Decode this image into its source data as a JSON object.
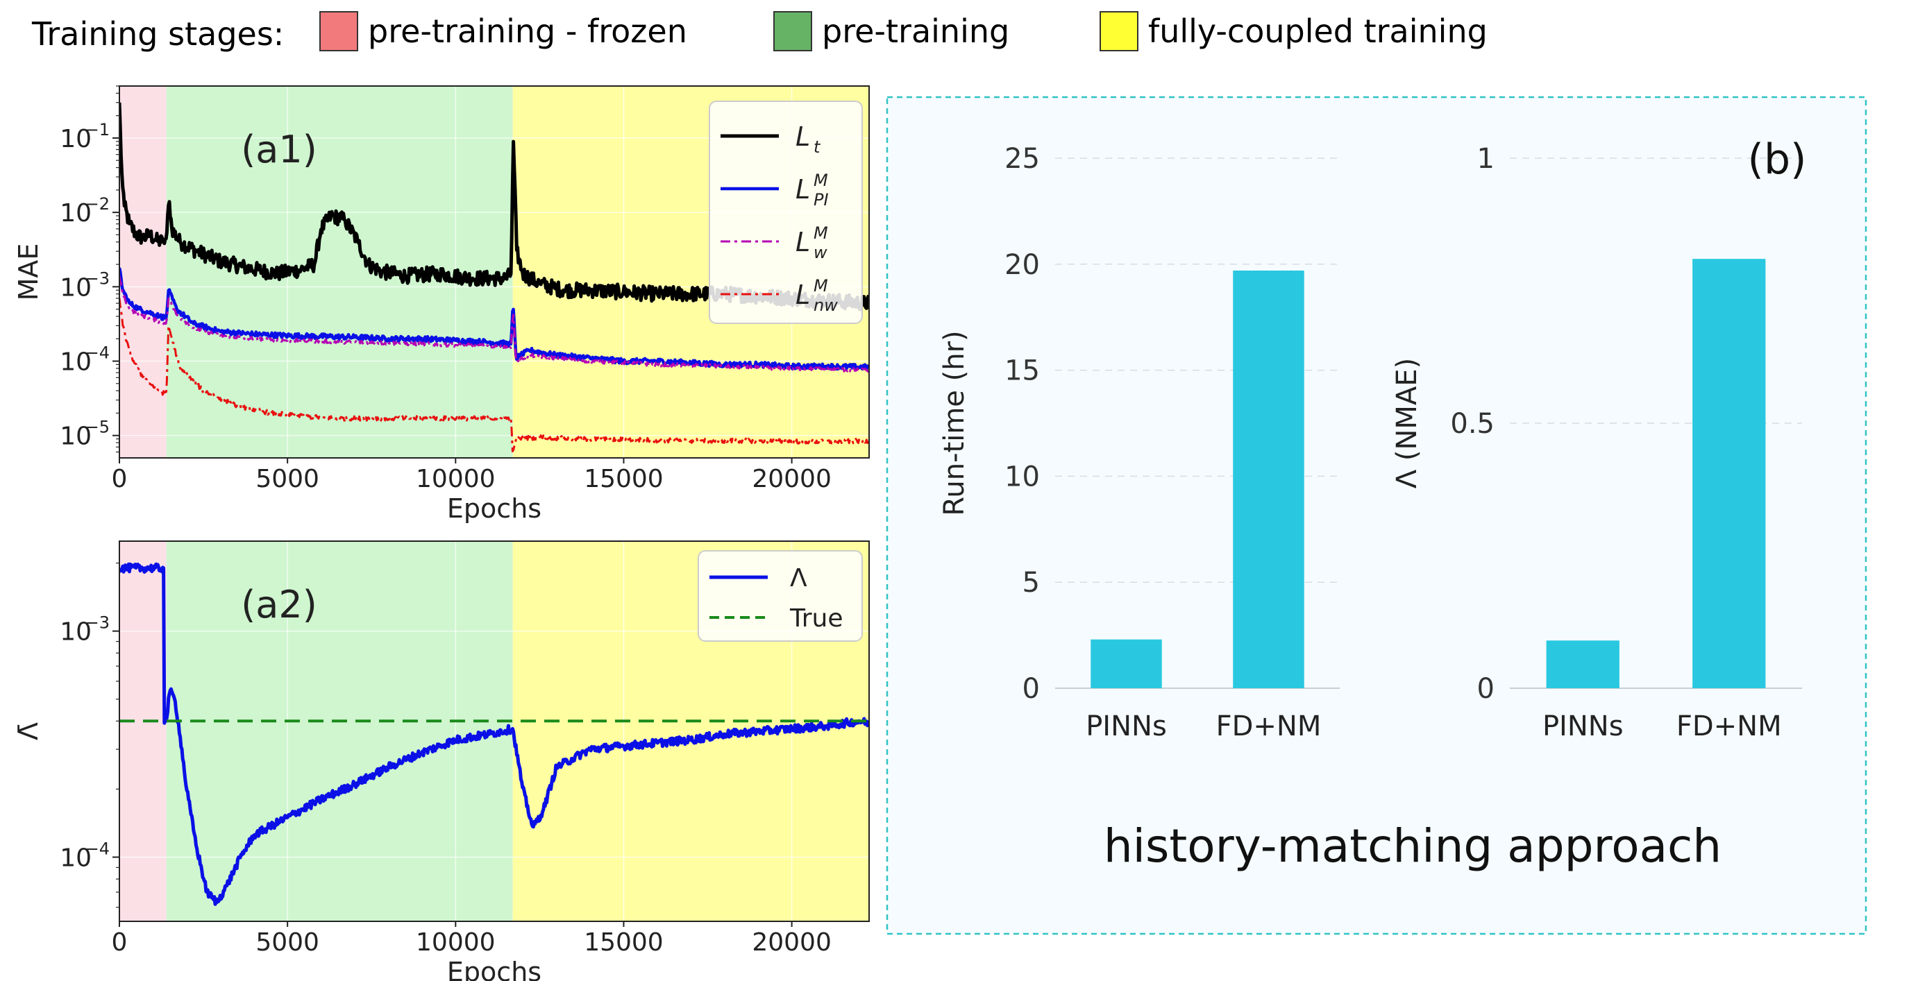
{
  "stage_legend": {
    "title": "Training stages:",
    "items": [
      {
        "label": "pre-training - frozen",
        "color": "#f27a7c"
      },
      {
        "label": "pre-training",
        "color": "#66b366"
      },
      {
        "label": "fully-coupled training",
        "color": "#ffff33"
      }
    ]
  },
  "colors": {
    "frozen_bg": "#fbe0e6",
    "pre_bg": "#cff6cf",
    "coupled_bg": "#ffffa2",
    "bar": "#29c8e0",
    "panel_border": "#30c4c4",
    "panel_bg": "#f5fbfe"
  },
  "chart_data": [
    {
      "id": "a1",
      "type": "line",
      "panel_label": "(a1)",
      "xlabel": "Epochs",
      "ylabel": "MAE",
      "yscale": "log",
      "xlim": [
        0,
        22300
      ],
      "ylim": [
        5e-06,
        0.5
      ],
      "xticks": [
        0,
        5000,
        10000,
        15000,
        20000
      ],
      "xtick_labels": [
        "0",
        "5000",
        "10000",
        "15000",
        "20000"
      ],
      "yticks": [
        1e-05,
        0.0001,
        0.001,
        0.01,
        0.1
      ],
      "ytick_labels": [
        [
          "10",
          "−5"
        ],
        [
          "10",
          "−4"
        ],
        [
          "10",
          "−3"
        ],
        [
          "10",
          "−2"
        ],
        [
          "10",
          "−1"
        ]
      ],
      "stages": [
        [
          0,
          1400,
          "frozen"
        ],
        [
          1400,
          11700,
          "pre"
        ],
        [
          11700,
          22300,
          "coupled"
        ]
      ],
      "legend_position": "top-right",
      "series": [
        {
          "name": "Lt",
          "name_main": "L",
          "name_sub": "t",
          "name_sup": "",
          "color": "#000000",
          "dash": "",
          "width": 5,
          "x": [
            0,
            60,
            150,
            300,
            500,
            700,
            900,
            1100,
            1300,
            1400,
            1480,
            1560,
            1800,
            2300,
            3000,
            3800,
            4700,
            5400,
            5800,
            6000,
            6300,
            6700,
            7100,
            7400,
            7800,
            8500,
            9500,
            10500,
            11500,
            11650,
            11720,
            11820,
            12000,
            12500,
            13200,
            14000,
            15000,
            16000,
            17000,
            18000,
            19000,
            20000,
            21000,
            22300
          ],
          "y": [
            0.3,
            0.04,
            0.012,
            0.007,
            0.005,
            0.0045,
            0.005,
            0.0042,
            0.004,
            0.0045,
            0.015,
            0.006,
            0.004,
            0.003,
            0.0022,
            0.0018,
            0.0015,
            0.0017,
            0.002,
            0.006,
            0.009,
            0.008,
            0.004,
            0.002,
            0.0016,
            0.0014,
            0.0015,
            0.0013,
            0.0013,
            0.0015,
            0.09,
            0.003,
            0.0015,
            0.0011,
            0.0009,
            0.0009,
            0.00085,
            0.0008,
            0.0008,
            0.0008,
            0.00075,
            0.0007,
            0.00065,
            0.0006
          ],
          "noise": 0.2
        },
        {
          "name": "L^M_PI",
          "name_main": "L",
          "name_sub": "PI",
          "name_sup": "M",
          "color": "#0a10e6",
          "dash": "",
          "width": 4.5,
          "x": [
            0,
            100,
            300,
            600,
            900,
            1200,
            1400,
            1460,
            1700,
            2200,
            3000,
            4000,
            5000,
            6000,
            7000,
            8000,
            9000,
            10000,
            11000,
            11650,
            11710,
            11800,
            12200,
            13000,
            14000,
            15000,
            16000,
            17000,
            18000,
            19000,
            20000,
            21000,
            22300
          ],
          "y": [
            0.0018,
            0.0009,
            0.0006,
            0.0005,
            0.00045,
            0.0004,
            0.00038,
            0.0009,
            0.0005,
            0.00032,
            0.00025,
            0.00023,
            0.00022,
            0.000215,
            0.00021,
            0.0002,
            0.0002,
            0.00019,
            0.00018,
            0.00017,
            0.0006,
            0.00011,
            0.00014,
            0.00012,
            0.00011,
            0.0001,
            0.0001,
            9.5e-05,
            9e-05,
            9e-05,
            8.5e-05,
            8.5e-05,
            8.3e-05
          ],
          "noise": 0.07
        },
        {
          "name": "L^M_w",
          "name_main": "L",
          "name_sub": "w",
          "name_sup": "M",
          "color": "#b400b4",
          "dash": "14 6 4 6",
          "width": 3,
          "x": [
            0,
            100,
            300,
            600,
            900,
            1200,
            1400,
            1460,
            1700,
            2200,
            3000,
            4000,
            5000,
            6000,
            7000,
            8000,
            9000,
            10000,
            11000,
            11650,
            11710,
            11800,
            12200,
            13000,
            14000,
            15000,
            16000,
            17000,
            18000,
            19000,
            20000,
            21000,
            22300
          ],
          "y": [
            0.0014,
            0.0008,
            0.0005,
            0.00042,
            0.00038,
            0.00034,
            0.00032,
            0.0007,
            0.00042,
            0.00028,
            0.00022,
            0.0002,
            0.00019,
            0.000185,
            0.00018,
            0.000175,
            0.00017,
            0.000165,
            0.00016,
            0.00015,
            0.0005,
            0.0001,
            0.00012,
            0.00011,
            0.0001,
            9.5e-05,
            9e-05,
            8.8e-05,
            8.5e-05,
            8.2e-05,
            8e-05,
            7.8e-05,
            7.5e-05
          ],
          "noise": 0.05
        },
        {
          "name": "L^M_nw",
          "name_main": "L",
          "name_sub": "nw",
          "name_sup": "M",
          "color": "#e81010",
          "dash": "14 6 4 6",
          "width": 3,
          "x": [
            0,
            100,
            300,
            600,
            900,
            1200,
            1400,
            1460,
            1800,
            2500,
            3500,
            4500,
            5500,
            6500,
            7500,
            8500,
            9500,
            10500,
            11650,
            11700,
            11800,
            12500,
            13500,
            15000,
            17000,
            19000,
            21000,
            22300
          ],
          "y": [
            0.0007,
            0.0003,
            0.00013,
            7e-05,
            5e-05,
            4e-05,
            3.5e-05,
            0.0003,
            8e-05,
            4e-05,
            2.5e-05,
            2e-05,
            1.8e-05,
            1.7e-05,
            1.7e-05,
            1.7e-05,
            1.7e-05,
            1.7e-05,
            1.7e-05,
            5.5e-06,
            9e-06,
            9.5e-06,
            9e-06,
            8.8e-06,
            8.5e-06,
            8.5e-06,
            8.2e-06,
            8.5e-06
          ],
          "noise": 0.06
        }
      ]
    },
    {
      "id": "a2",
      "type": "line",
      "panel_label": "(a2)",
      "xlabel": "Epochs",
      "ylabel": "Λ̄",
      "yscale": "log",
      "xlim": [
        0,
        22300
      ],
      "ylim": [
        5.2e-05,
        0.0025
      ],
      "xticks": [
        0,
        5000,
        10000,
        15000,
        20000
      ],
      "xtick_labels": [
        "0",
        "5000",
        "10000",
        "15000",
        "20000"
      ],
      "yticks": [
        0.0001,
        0.001
      ],
      "ytick_labels": [
        [
          "10",
          "−4"
        ],
        [
          "10",
          "−3"
        ]
      ],
      "stages": [
        [
          0,
          1400,
          "frozen"
        ],
        [
          1400,
          11700,
          "pre"
        ],
        [
          11700,
          22300,
          "coupled"
        ]
      ],
      "legend_position": "top-right",
      "series": [
        {
          "name": "Λ",
          "name_main": "Λ",
          "name_sub": "",
          "name_sup": "",
          "color": "#0a10e6",
          "dash": "",
          "width": 5,
          "x": [
            0,
            1320,
            1321,
            1400,
            1500,
            1650,
            1800,
            2000,
            2300,
            2600,
            2900,
            3200,
            3600,
            4000,
            5000,
            6000,
            7000,
            8000,
            9000,
            10000,
            11000,
            11700,
            12000,
            12300,
            12600,
            13000,
            14000,
            15000,
            16000,
            17000,
            18000,
            19000,
            20000,
            21000,
            22000,
            22300
          ],
          "y": [
            0.0019,
            0.0019,
            0.0004,
            0.0004,
            0.00055,
            0.0005,
            0.00035,
            0.0002,
            0.00011,
            7e-05,
            6.3e-05,
            7.5e-05,
            0.0001,
            0.000125,
            0.00015,
            0.00018,
            0.00021,
            0.00025,
            0.00029,
            0.00033,
            0.00035,
            0.00037,
            0.0002,
            0.000135,
            0.00016,
            0.00025,
            0.0003,
            0.00031,
            0.00032,
            0.00033,
            0.00035,
            0.00036,
            0.00037,
            0.00038,
            0.0004,
            0.00039
          ],
          "noise": 0.035
        },
        {
          "name": "True",
          "name_main": "True",
          "name_sub": "",
          "name_sup": "",
          "color": "#1a8a1a",
          "dash": "22 12",
          "width": 4,
          "x": [
            0,
            22300
          ],
          "y": [
            0.0004,
            0.0004
          ],
          "noise": 0
        }
      ]
    },
    {
      "id": "b-runtime",
      "type": "bar",
      "categories": [
        "PINNs",
        "FD+NM"
      ],
      "values": [
        2.3,
        19.7
      ],
      "ylabel": "Run-time (hr)",
      "ylim": [
        0,
        25
      ],
      "yticks": [
        0,
        5,
        10,
        15,
        20,
        25
      ],
      "ytick_labels": [
        "0",
        "5",
        "10",
        "15",
        "20",
        "25"
      ]
    },
    {
      "id": "b-nmae",
      "type": "bar",
      "categories": [
        "PINNs",
        "FD+NM"
      ],
      "values": [
        0.09,
        0.81
      ],
      "ylabel": "Λ (NMAE)",
      "ylim": [
        0,
        1
      ],
      "yticks": [
        0,
        0.5,
        1
      ],
      "ytick_labels": [
        "0",
        "0.5",
        "1"
      ]
    }
  ],
  "panel_b": {
    "label": "(b)",
    "caption": "history-matching approach"
  }
}
